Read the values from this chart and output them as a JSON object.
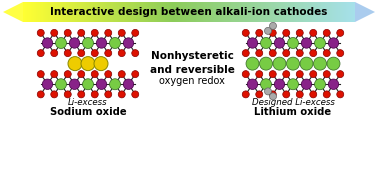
{
  "title": "Interactive design between alkali-ion cathodes",
  "left_label1": "Li-excess",
  "left_label2": "Sodium oxide",
  "right_label1": "Designed Li-excess",
  "right_label2": "Lithium oxide",
  "center_bold": "Nonhysteretic\nand reversible",
  "center_normal": "oxygen redox",
  "bg_color": "#ffffff",
  "red": "#dd1100",
  "purple": "#882288",
  "green": "#77cc44",
  "yellow": "#eecc00",
  "grey": "#aaaaaa",
  "dark_red": "#880000",
  "dark_purple": "#440044",
  "dark_green": "#336622",
  "dark_yellow": "#888800"
}
